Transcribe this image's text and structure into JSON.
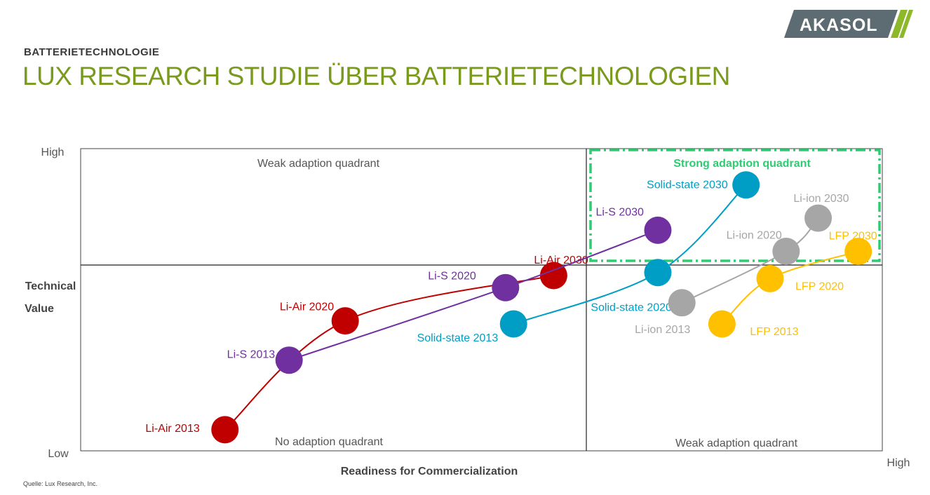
{
  "header": {
    "kicker": "BATTERIETECHNOLOGIE",
    "title": "LUX RESEARCH STUDIE ÜBER BATTERIETECHNOLOGIEN",
    "logo_text": "AKASOL"
  },
  "footer": {
    "source": "Quelle: Lux Research, Inc."
  },
  "colors": {
    "title": "#7a9a1e",
    "logo_bg": "#5d6b73",
    "logo_accent": "#8cb82a",
    "strong_quadrant": "#2ecc71"
  },
  "chart_data": {
    "type": "scatter",
    "x_axis": {
      "label": "Readiness for Commercialization",
      "low": "",
      "high": "High",
      "lim": [
        0,
        100
      ]
    },
    "y_axis": {
      "label_line1": "Technical",
      "label_line2": "Value",
      "low": "Low",
      "high": "High",
      "lim": [
        0,
        100
      ]
    },
    "quadrants": {
      "top_left": "Weak adaption quadrant",
      "top_right": "Strong adaption quadrant",
      "bottom_left": "No adaption quadrant",
      "bottom_right": "Weak adaption quadrant"
    },
    "series": [
      {
        "name": "Li-Air",
        "color": "#c00000",
        "points": [
          {
            "x": 18,
            "y": 7,
            "label": "Li-Air 2013"
          },
          {
            "x": 33,
            "y": 43,
            "label": "Li-Air 2020"
          },
          {
            "x": 59,
            "y": 58,
            "label": "Li-Air 2030"
          }
        ]
      },
      {
        "name": "Li-S",
        "color": "#7030a0",
        "points": [
          {
            "x": 26,
            "y": 30,
            "label": "Li-S 2013"
          },
          {
            "x": 53,
            "y": 54,
            "label": "Li-S 2020"
          },
          {
            "x": 72,
            "y": 73,
            "label": "Li-S 2030"
          }
        ]
      },
      {
        "name": "Solid-state",
        "color": "#009ec4",
        "points": [
          {
            "x": 54,
            "y": 42,
            "label": "Solid-state 2013"
          },
          {
            "x": 72,
            "y": 59,
            "label": "Solid-state 2020"
          },
          {
            "x": 83,
            "y": 88,
            "label": "Solid-state 2030"
          }
        ]
      },
      {
        "name": "Li-ion",
        "color": "#a6a6a6",
        "points": [
          {
            "x": 75,
            "y": 49,
            "label": "Li-ion 2013"
          },
          {
            "x": 88,
            "y": 66,
            "label": "Li-ion 2020"
          },
          {
            "x": 92,
            "y": 77,
            "label": "Li-ion 2030"
          }
        ]
      },
      {
        "name": "LFP",
        "color": "#ffc000",
        "points": [
          {
            "x": 80,
            "y": 42,
            "label": "LFP 2013"
          },
          {
            "x": 86,
            "y": 57,
            "label": "LFP 2020"
          },
          {
            "x": 97,
            "y": 66,
            "label": "LFP 2030"
          }
        ]
      }
    ]
  }
}
